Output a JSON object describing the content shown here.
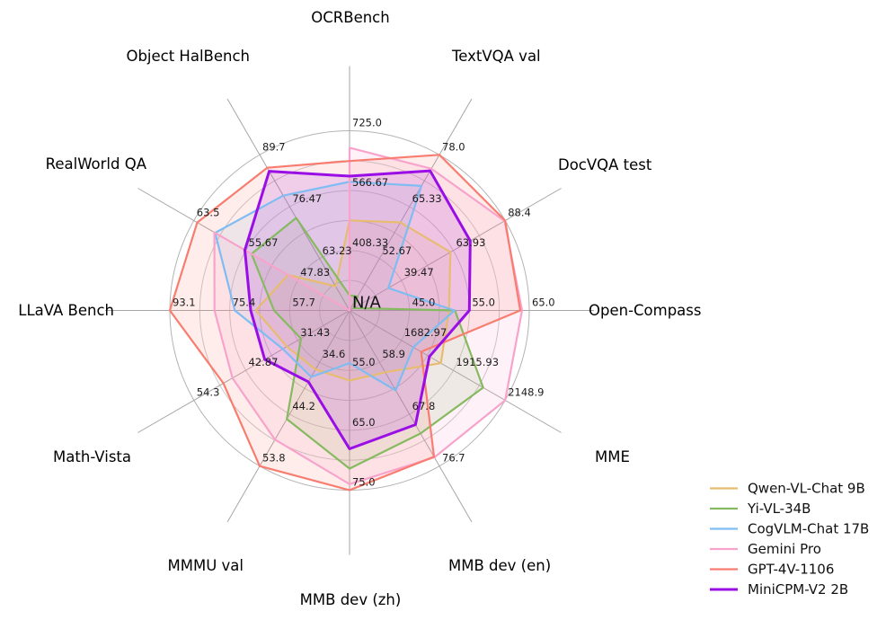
{
  "chart_data": {
    "type": "radar",
    "title": "",
    "center_label": "N/A",
    "grid": true,
    "legend_position": "lower right",
    "axes": [
      {
        "label": "OCRBench",
        "min": 250,
        "max": 725,
        "ticks": [
          "408.33",
          "566.67",
          "725.0"
        ]
      },
      {
        "label": "TextVQA val",
        "min": 40,
        "max": 78,
        "ticks": [
          "52.67",
          "65.33",
          "78.0"
        ]
      },
      {
        "label": "DocVQA test",
        "min": 15,
        "max": 88.4,
        "ticks": [
          "39.47",
          "63.93",
          "88.4"
        ]
      },
      {
        "label": "Open-Compass",
        "min": 35,
        "max": 65,
        "ticks": [
          "45.0",
          "55.0",
          "65.0"
        ]
      },
      {
        "label": "MME",
        "min": 1450,
        "max": 2148.9,
        "ticks": [
          "1682.97",
          "1915.93",
          "2148.9"
        ]
      },
      {
        "label": "MMB dev (en)",
        "min": 50,
        "max": 76.7,
        "ticks": [
          "58.9",
          "67.8",
          "76.7"
        ]
      },
      {
        "label": "MMB dev (zh)",
        "min": 45,
        "max": 75,
        "ticks": [
          "55.0",
          "65.0",
          "75.0"
        ]
      },
      {
        "label": "MMMU val",
        "min": 25,
        "max": 53.8,
        "ticks": [
          "34.6",
          "44.2",
          "53.8"
        ]
      },
      {
        "label": "Math-Vista",
        "min": 20,
        "max": 54.3,
        "ticks": [
          "31.43",
          "42.87",
          "54.3"
        ]
      },
      {
        "label": "LLaVA Bench",
        "min": 40,
        "max": 93.1,
        "ticks": [
          "57.7",
          "75.4",
          "93.1"
        ]
      },
      {
        "label": "RealWorld QA",
        "min": 40,
        "max": 63.5,
        "ticks": [
          "47.83",
          "55.67",
          "63.5"
        ]
      },
      {
        "label": "Object HalBench",
        "min": 50,
        "max": 89.7,
        "ticks": [
          "63.23",
          "76.47",
          "89.7"
        ]
      }
    ],
    "series": [
      {
        "name": "Qwen-VL-Chat 9B",
        "color": "#e7bc71",
        "lw": 2.2,
        "values": [
          488,
          61.5,
          62.6,
          51.6,
          1860.0,
          60.6,
          56.7,
          35.9,
          33.8,
          67.7,
          49.3,
          56.2
        ]
      },
      {
        "name": "Yi-VL-34B",
        "color": "#86ba60",
        "lw": 2.2,
        "values": [
          290,
          43.4,
          16.9,
          52.6,
          2050.2,
          71.1,
          71.4,
          45.1,
          30.7,
          62.3,
          54.8,
          73.6
        ]
      },
      {
        "name": "CogVLM-Chat 17B",
        "color": "#7fbcf2",
        "lw": 2.2,
        "values": [
          590,
          70.4,
          33.3,
          52.5,
          1736.6,
          63.7,
          53.8,
          37.3,
          34.7,
          73.9,
          60.3,
          79.3
        ]
      },
      {
        "name": "Gemini Pro",
        "color": "#f8a3cc",
        "lw": 2.2,
        "values": [
          680,
          74.6,
          88.1,
          63.8,
          2148.9,
          75.2,
          74.0,
          48.9,
          45.8,
          79.9,
          60.4,
          null
        ]
      },
      {
        "name": "GPT-4V-1106",
        "color": "#f87d70",
        "lw": 2.2,
        "values": [
          645,
          78.0,
          88.4,
          63.5,
          1771.5,
          75.1,
          75.0,
          53.8,
          47.8,
          93.1,
          63.0,
          86.4
        ]
      },
      {
        "name": "MiniCPM-V2 2B",
        "color": "#9a0ee6",
        "lw": 3,
        "values": [
          605,
          74.1,
          71.9,
          55.0,
          1808.6,
          69.6,
          68.1,
          38.2,
          38.7,
          69.2,
          55.8,
          85.5
        ]
      }
    ]
  }
}
